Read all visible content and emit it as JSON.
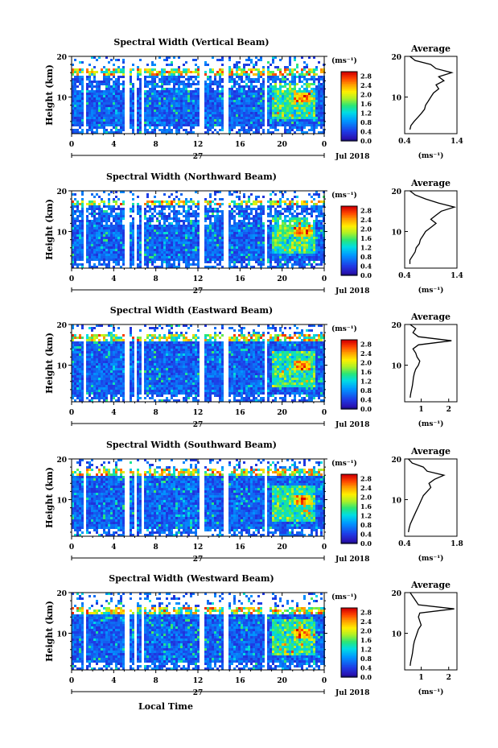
{
  "chart_data": [
    {
      "type": "heatmap",
      "title": "Spectral Width (Vertical Beam)",
      "ylabel": "Height (km)",
      "x_ticks": [
        "0",
        "4",
        "8",
        "12",
        "16",
        "20",
        "0"
      ],
      "y_ticks": [
        "20",
        "10"
      ],
      "xlim": [
        0,
        24
      ],
      "ylim": [
        1,
        20
      ],
      "date_label": "27",
      "month_label": "Jul 2018",
      "colorbar_label": "(ms⁻¹)",
      "colorbar_ticks": [
        "2.8",
        "2.4",
        "2.0",
        "1.6",
        "1.2",
        "0.8",
        "0.4",
        "0.0"
      ],
      "colorbar_range": [
        0.0,
        3.0
      ],
      "average": {
        "title": "Average",
        "xlabel": "(ms⁻¹)",
        "x_ticks": [
          "0.4",
          "1.4"
        ],
        "y_ticks": [
          "20",
          "10"
        ],
        "xlim": [
          0.4,
          1.4
        ],
        "ylim": [
          1,
          20
        ],
        "heights": [
          2,
          3,
          4,
          5,
          6,
          7,
          8,
          9,
          10,
          11,
          12,
          13,
          14,
          15,
          16,
          17,
          18,
          19,
          20
        ],
        "values": [
          0.5,
          0.52,
          0.58,
          0.65,
          0.72,
          0.78,
          0.8,
          0.85,
          0.9,
          0.95,
          1.05,
          1.0,
          1.15,
          1.05,
          1.3,
          1.0,
          0.9,
          0.6,
          0.5
        ]
      }
    },
    {
      "type": "heatmap",
      "title": "Spectral Width (Northward Beam)",
      "ylabel": "Height (km)",
      "x_ticks": [
        "0",
        "4",
        "8",
        "12",
        "16",
        "20",
        "0"
      ],
      "y_ticks": [
        "20",
        "10"
      ],
      "xlim": [
        0,
        24
      ],
      "ylim": [
        1,
        20
      ],
      "date_label": "27",
      "month_label": "Jul 2018",
      "colorbar_label": "(ms⁻¹)",
      "colorbar_ticks": [
        "2.8",
        "2.4",
        "2.0",
        "1.6",
        "1.2",
        "0.8",
        "0.4",
        "0.0"
      ],
      "colorbar_range": [
        0.0,
        3.0
      ],
      "average": {
        "title": "Average",
        "xlabel": "(ms⁻¹)",
        "x_ticks": [
          "0.4",
          "1.4"
        ],
        "y_ticks": [
          "20",
          "10"
        ],
        "xlim": [
          0.4,
          1.4
        ],
        "ylim": [
          1,
          20
        ],
        "heights": [
          2,
          3,
          4,
          5,
          6,
          7,
          8,
          9,
          10,
          11,
          12,
          13,
          14,
          15,
          16,
          17,
          18,
          19,
          20
        ],
        "values": [
          0.5,
          0.5,
          0.55,
          0.6,
          0.62,
          0.68,
          0.7,
          0.75,
          0.8,
          0.9,
          1.0,
          0.9,
          1.0,
          1.1,
          1.35,
          1.05,
          0.8,
          0.6,
          0.5
        ]
      }
    },
    {
      "type": "heatmap",
      "title": "Spectral Width (Eastward Beam)",
      "ylabel": "Height (km)",
      "x_ticks": [
        "0",
        "4",
        "8",
        "12",
        "16",
        "20",
        "0"
      ],
      "y_ticks": [
        "20",
        "10"
      ],
      "xlim": [
        0,
        24
      ],
      "ylim": [
        1,
        20
      ],
      "date_label": "27",
      "month_label": "Jul 2018",
      "colorbar_label": "(ms⁻¹)",
      "colorbar_ticks": [
        "2.8",
        "2.4",
        "2.0",
        "1.6",
        "1.2",
        "0.8",
        "0.4",
        "0.0"
      ],
      "colorbar_range": [
        0.0,
        3.0
      ],
      "average": {
        "title": "Average",
        "xlabel": "(ms⁻¹)",
        "x_ticks": [
          "1",
          "2"
        ],
        "y_ticks": [
          "20",
          "10"
        ],
        "xlim": [
          0.4,
          2.3
        ],
        "ylim": [
          1,
          20
        ],
        "heights": [
          2,
          3,
          4,
          5,
          6,
          7,
          8,
          9,
          10,
          11,
          12,
          13,
          14,
          15,
          16,
          17,
          18,
          19,
          20
        ],
        "values": [
          0.6,
          0.62,
          0.65,
          0.68,
          0.7,
          0.72,
          0.75,
          0.8,
          0.9,
          0.95,
          0.85,
          0.8,
          0.7,
          0.9,
          2.1,
          0.9,
          0.7,
          0.8,
          0.6
        ]
      }
    },
    {
      "type": "heatmap",
      "title": "Spectral Width (Southward Beam)",
      "ylabel": "Height (km)",
      "x_ticks": [
        "0",
        "4",
        "8",
        "12",
        "16",
        "20",
        "0"
      ],
      "y_ticks": [
        "20",
        "10"
      ],
      "xlim": [
        0,
        24
      ],
      "ylim": [
        1,
        20
      ],
      "date_label": "27",
      "month_label": "Jul 2018",
      "colorbar_label": "(ms⁻¹)",
      "colorbar_ticks": [
        "2.8",
        "2.4",
        "2.0",
        "1.6",
        "1.2",
        "0.8",
        "0.4",
        "0.0"
      ],
      "colorbar_range": [
        0.0,
        3.0
      ],
      "average": {
        "title": "Average",
        "xlabel": "(ms⁻¹)",
        "x_ticks": [
          "0.4",
          "1.8"
        ],
        "y_ticks": [
          "20",
          "10"
        ],
        "xlim": [
          0.4,
          1.8
        ],
        "ylim": [
          1,
          20
        ],
        "heights": [
          2,
          3,
          4,
          5,
          6,
          7,
          8,
          9,
          10,
          11,
          12,
          13,
          14,
          15,
          16,
          17,
          18,
          19,
          20
        ],
        "values": [
          0.5,
          0.52,
          0.55,
          0.6,
          0.65,
          0.7,
          0.75,
          0.8,
          0.85,
          0.9,
          1.0,
          1.1,
          1.05,
          1.2,
          1.45,
          1.0,
          0.9,
          0.6,
          0.5
        ]
      }
    },
    {
      "type": "heatmap",
      "title": "Spectral Width (Westward Beam)",
      "ylabel": "Height (km)",
      "x_ticks": [
        "0",
        "4",
        "8",
        "12",
        "16",
        "20",
        "0"
      ],
      "y_ticks": [
        "20",
        "10"
      ],
      "xlim": [
        0,
        24
      ],
      "ylim": [
        1,
        20
      ],
      "date_label": "27",
      "month_label": "Jul 2018",
      "xlabel": "Local Time",
      "colorbar_label": "(ms⁻¹)",
      "colorbar_ticks": [
        "2.8",
        "2.4",
        "2.0",
        "1.6",
        "1.2",
        "0.8",
        "0.4",
        "0.0"
      ],
      "colorbar_range": [
        0.0,
        3.0
      ],
      "average": {
        "title": "Average",
        "xlabel": "(ms⁻¹)",
        "x_ticks": [
          "1",
          "2"
        ],
        "y_ticks": [
          "20",
          "10"
        ],
        "xlim": [
          0.4,
          2.3
        ],
        "ylim": [
          1,
          20
        ],
        "heights": [
          2,
          3,
          4,
          5,
          6,
          7,
          8,
          9,
          10,
          11,
          12,
          13,
          14,
          15,
          16,
          17,
          18,
          19,
          20
        ],
        "values": [
          0.6,
          0.62,
          0.65,
          0.68,
          0.7,
          0.72,
          0.75,
          0.8,
          0.85,
          0.9,
          1.0,
          0.95,
          0.9,
          0.95,
          2.2,
          0.9,
          0.8,
          0.7,
          0.6
        ]
      }
    }
  ]
}
